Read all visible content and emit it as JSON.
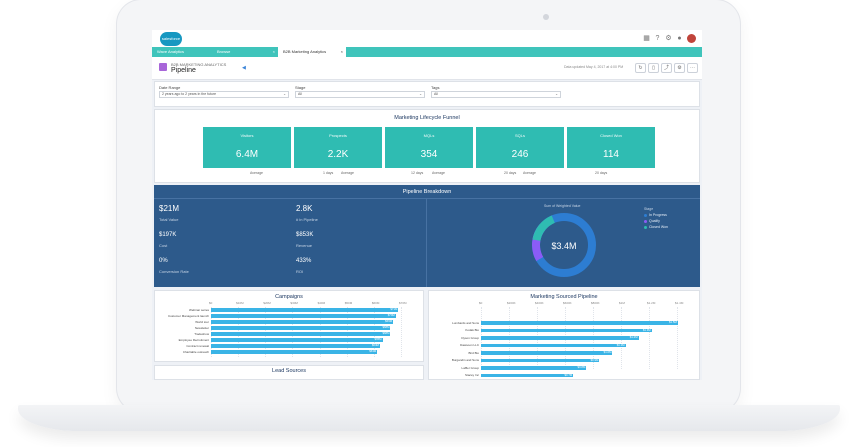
{
  "tabs": [
    {
      "label": "Wave Analytics",
      "active": false
    },
    {
      "label": "Browse",
      "active": false
    },
    {
      "label": "B2B Marketing Analytics",
      "active": true
    }
  ],
  "logo": "salesforce",
  "header": {
    "subtitle": "B2B MARKETING ANALYTICS",
    "title": "Pipeline",
    "updated": "Data updated May 4, 2017 at 4:00 PM"
  },
  "filters": [
    {
      "label": "Date Range",
      "value": "2 years ago to 2 years in the future"
    },
    {
      "label": "Stage",
      "value": "All"
    },
    {
      "label": "Tags",
      "value": "All"
    }
  ],
  "funnel": {
    "title": "Marketing Lifecycle Funnel",
    "stages": [
      {
        "label": "Visitors",
        "value": "6.4M"
      },
      {
        "label": "Prospects",
        "value": "2.2K"
      },
      {
        "label": "MQLs",
        "value": "354"
      },
      {
        "label": "SQLs",
        "value": "246"
      },
      {
        "label": "Closed Won",
        "value": "114"
      }
    ],
    "sub": [
      "Average",
      "1 days",
      "Average",
      "12 days",
      "Average",
      "20 days",
      "Average",
      "20 days"
    ]
  },
  "pipeline": {
    "title": "Pipeline Breakdown",
    "kpis": [
      {
        "value": "$21M",
        "label": "Total Value"
      },
      {
        "value": "2.8K",
        "label": "# in Pipeline"
      },
      {
        "value": "$197K",
        "label": "Cost"
      },
      {
        "value": "$853K",
        "label": "Revenue"
      },
      {
        "value": "0%",
        "label": "Conversion Rate"
      },
      {
        "value": "433%",
        "label": "ROI"
      }
    ],
    "donut_title": "Sum of Weighted Value",
    "donut_center": "$3.4M",
    "legend_title": "Stage",
    "legend": [
      {
        "label": "In Progress",
        "color": "#2d7dd2"
      },
      {
        "label": "Qualify",
        "color": "#8b5cf6"
      },
      {
        "label": "Closed Won",
        "color": "#2fbcb2"
      }
    ]
  },
  "chart_data": [
    {
      "type": "bar",
      "title": "Campaigns",
      "categories": [
        "Webinar series",
        "Customer Management launch",
        "World tour",
        "Newsletter",
        "Tradeshow",
        "Employee Recruitment",
        "Contract renewal",
        "Charitable outreach"
      ],
      "values": [
        71,
        70,
        69,
        68,
        68,
        65,
        64,
        63
      ],
      "labels": [
        "$71M",
        "$70M",
        "$69M",
        "$68M",
        "$68M",
        "$65M",
        "$64M",
        "$63M"
      ],
      "ticks": [
        "$0",
        "$10M",
        "$20M",
        "$30M",
        "$40M",
        "$50M",
        "$60M",
        "$70M"
      ]
    },
    {
      "type": "bar",
      "title": "Marketing Sourced Pipeline",
      "categories": [
        "Lumbards and Sons",
        "Kodak Bio",
        "Dyson Group",
        "Dawsoon LLC",
        "Bird Bio",
        "Burgandin and Sons",
        "Laffler Group",
        "Stacey Inc"
      ],
      "values": [
        1.5,
        1.3,
        1.2,
        1.1,
        1.0,
        0.9,
        0.8,
        0.7
      ],
      "labels": [
        "$1.5M",
        "$1.3M",
        "$1.2M",
        "$1.1M",
        "$1.0M",
        "$0.9M",
        "$0.8M",
        "$0.7M"
      ],
      "ticks": [
        "$0",
        "$200K",
        "$400K",
        "$600K",
        "$800K",
        "$1M",
        "$1.2M",
        "$1.4M"
      ]
    }
  ],
  "lead_sources": {
    "title": "Lead Sources"
  }
}
